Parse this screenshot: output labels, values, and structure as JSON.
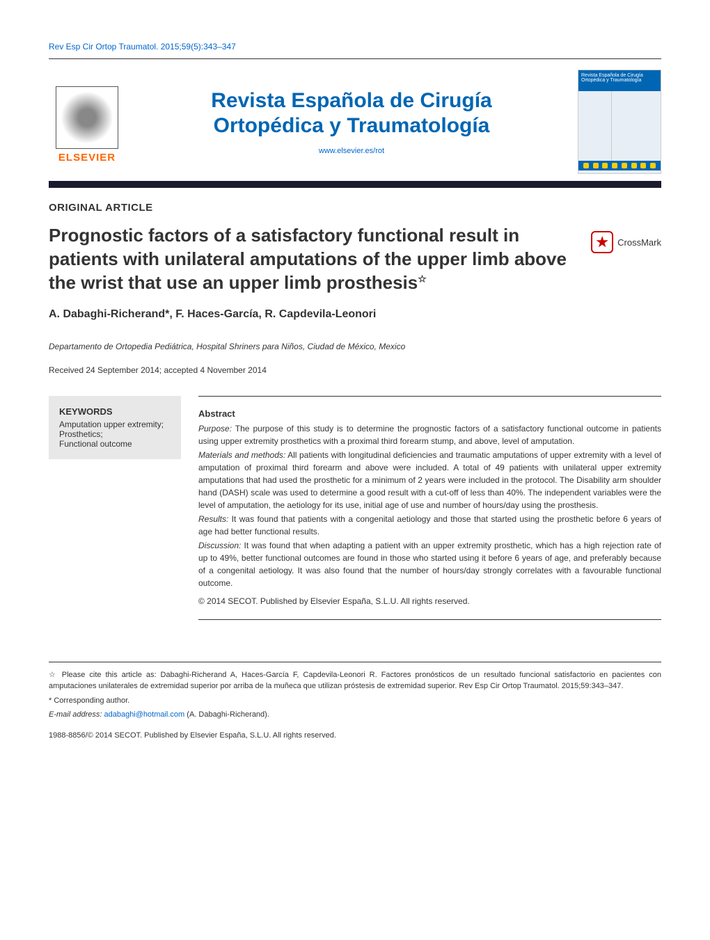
{
  "citation_top": "Rev Esp Cir Ortop Traumatol. 2015;59(5):343–347",
  "journal": {
    "publisher_text": "ELSEVIER",
    "title_line1": "Revista Española de Cirugía",
    "title_line2": "Ortopédica y Traumatología",
    "url": "www.elsevier.es/rot",
    "cover_title": "Revista Española de Cirugía Ortopédica y Traumatología"
  },
  "article": {
    "type": "ORIGINAL ARTICLE",
    "title": "Prognostic factors of a satisfactory functional result in patients with unilateral amputations of the upper limb above the wrist that use an upper limb prosthesis",
    "star": "☆",
    "crossmark": "CrossMark",
    "authors": "A. Dabaghi-Richerand*, F. Haces-García, R. Capdevila-Leonori",
    "affiliation": "Departamento de Ortopedia Pediátrica, Hospital Shriners para Niños, Ciudad de México, Mexico",
    "dates": "Received 24 September 2014; accepted 4 November 2014"
  },
  "keywords": {
    "heading": "KEYWORDS",
    "items": "Amputation upper extremity;\nProsthetics;\nFunctional outcome"
  },
  "abstract": {
    "heading": "Abstract",
    "purpose_label": "Purpose:",
    "purpose": " The purpose of this study is to determine the prognostic factors of a satisfactory functional outcome in patients using upper extremity prosthetics with a proximal third forearm stump, and above, level of amputation.",
    "methods_label": "Materials and methods:",
    "methods": " All patients with longitudinal deficiencies and traumatic amputations of upper extremity with a level of amputation of proximal third forearm and above were included. A total of 49 patients with unilateral upper extremity amputations that had used the prosthetic for a minimum of 2 years were included in the protocol. The Disability arm shoulder hand (DASH) scale was used to determine a good result with a cut-off of less than 40%. The independent variables were the level of amputation, the aetiology for its use, initial age of use and number of hours/day using the prosthesis.",
    "results_label": "Results:",
    "results": " It was found that patients with a congenital aetiology and those that started using the prosthetic before 6 years of age had better functional results.",
    "discussion_label": "Discussion:",
    "discussion": " It was found that when adapting a patient with an upper extremity prosthetic, which has a high rejection rate of up to 49%, better functional outcomes are found in those who started using it before 6 years of age, and preferably because of a congenital aetiology. It was also found that the number of hours/day strongly correlates with a favourable functional outcome.",
    "copyright": "© 2014 SECOT. Published by Elsevier España, S.L.U. All rights reserved."
  },
  "footer": {
    "cite_star": "☆",
    "cite_as": " Please cite this article as: Dabaghi-Richerand A, Haces-García F, Capdevila-Leonori R. Factores pronósticos de un resultado funcional satisfactorio en pacientes con amputaciones unilaterales de extremidad superior por arriba de la muñeca que utilizan próstesis de extremidad superior. Rev Esp Cir Ortop Traumatol. 2015;59:343–347.",
    "corresponding_marker": "*",
    "corresponding": " Corresponding author.",
    "email_label": "E-mail address: ",
    "email": "adabaghi@hotmail.com",
    "email_author": " (A. Dabaghi-Richerand).",
    "issn": "1988-8856/© 2014 SECOT. Published by Elsevier España, S.L.U. All rights reserved."
  }
}
